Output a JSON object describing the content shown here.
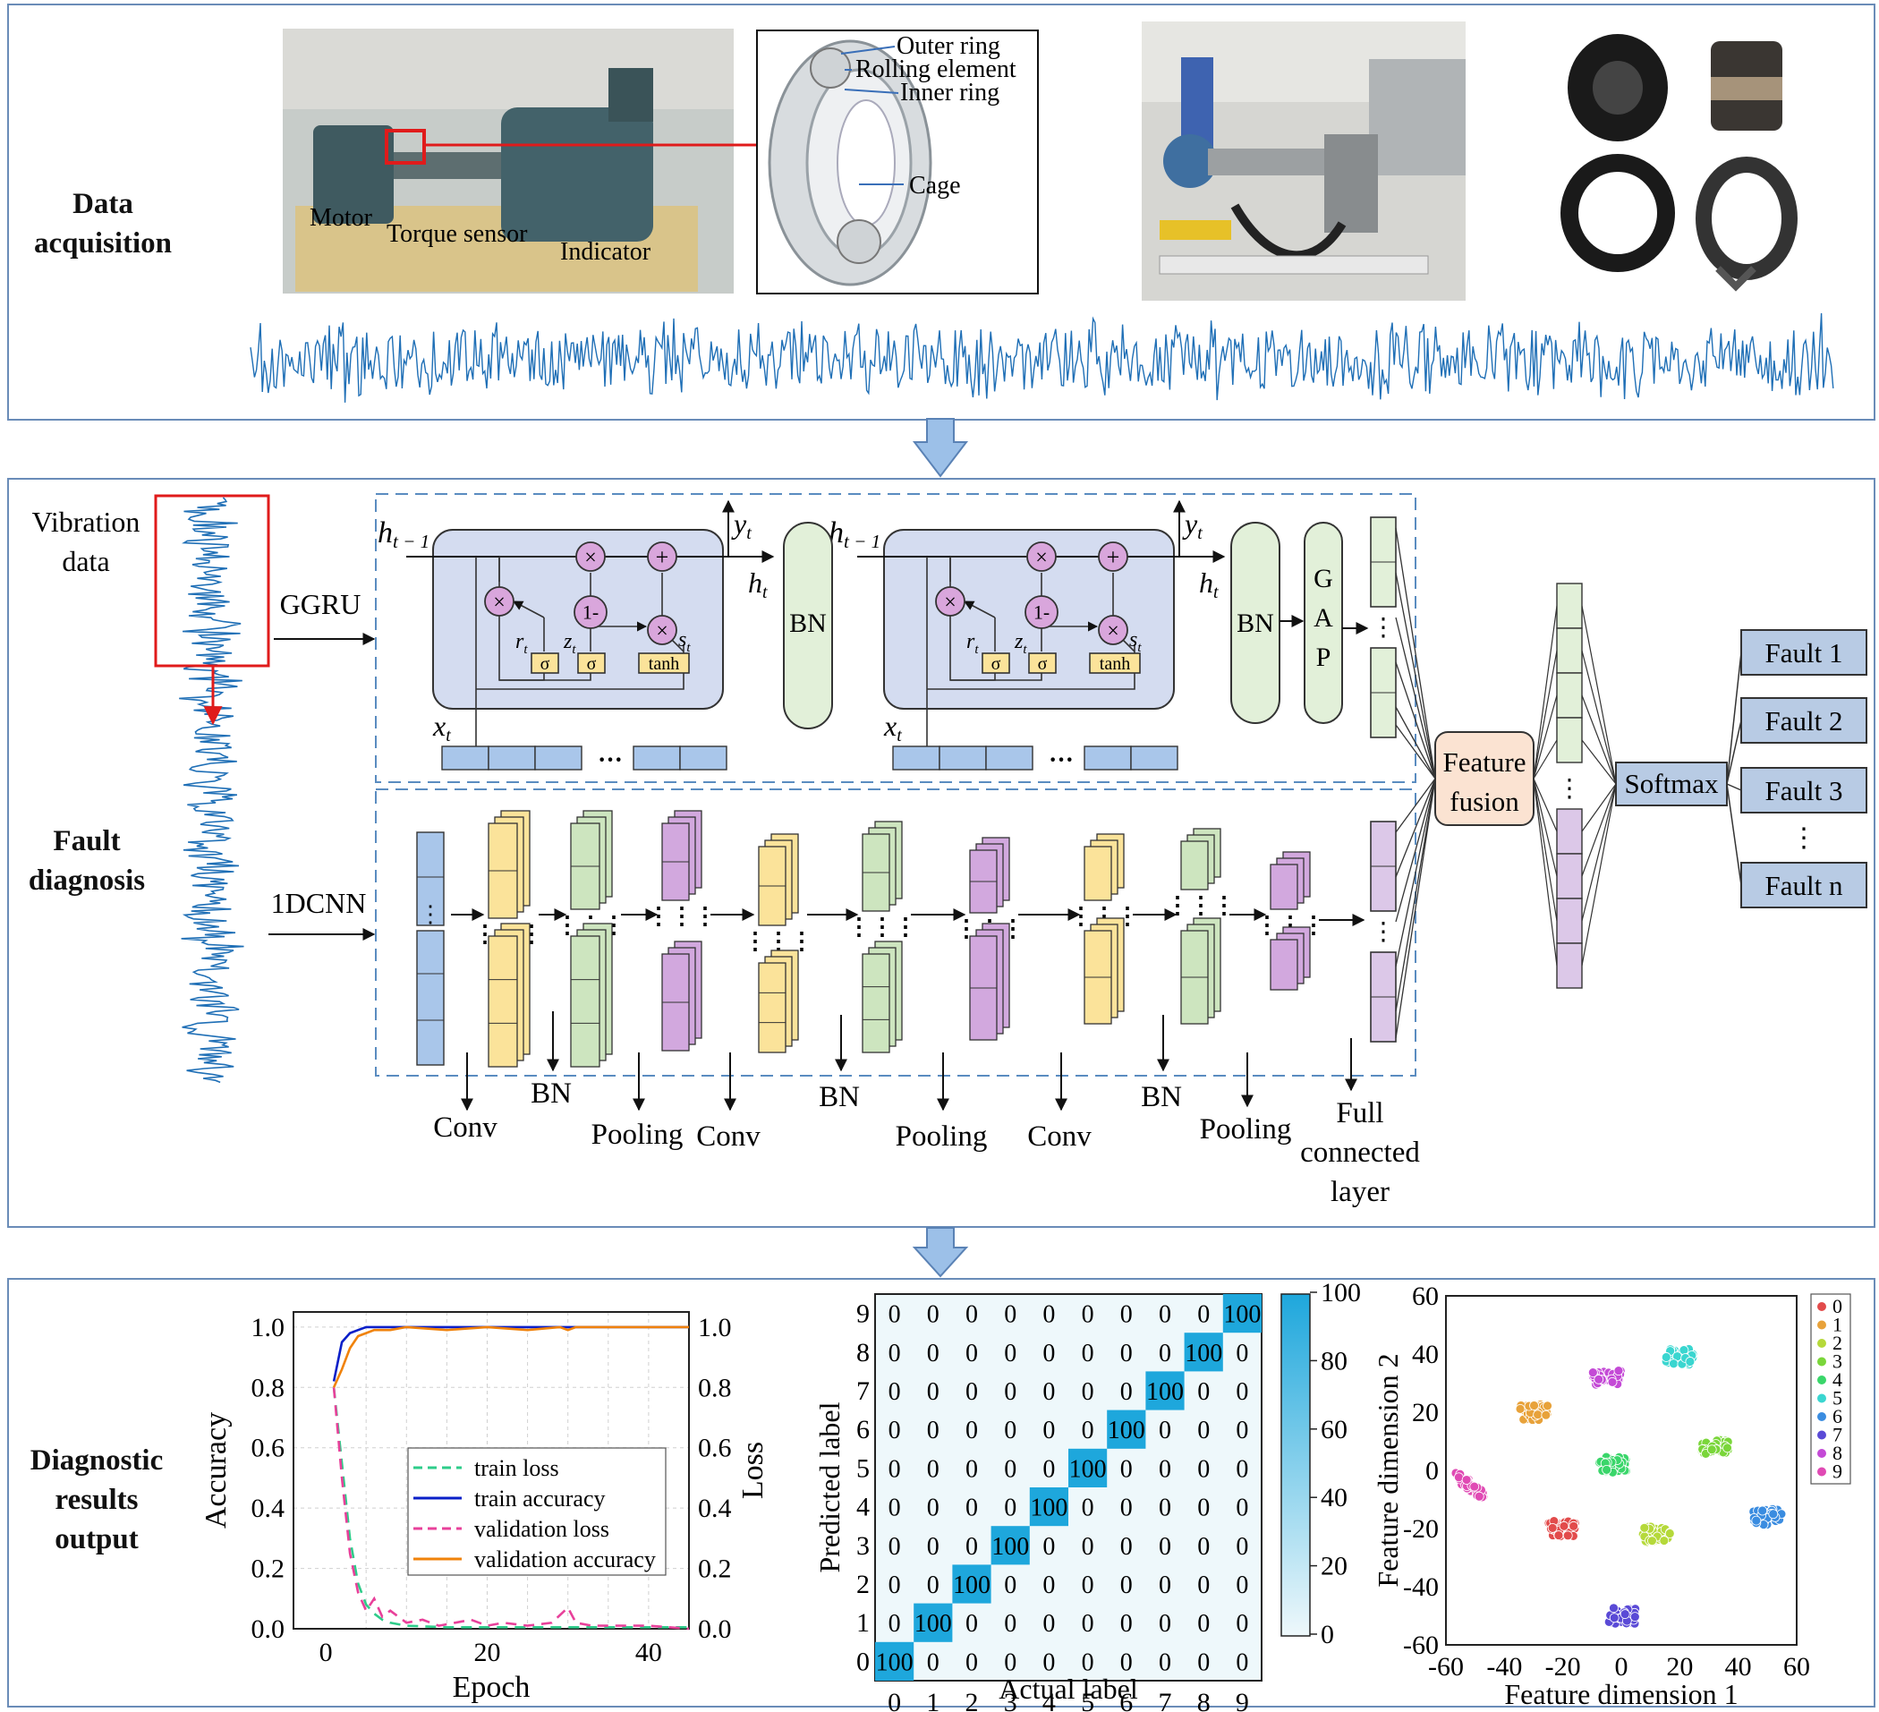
{
  "sections": {
    "acquisition": "Data acquisition",
    "diagnosis": "Fault diagnosis",
    "output": "Diagnostic results output"
  },
  "bearing_parts": [
    "Outer ring",
    "Rolling element",
    "Inner ring",
    "Cage"
  ],
  "testbench_labels": [
    "Motor",
    "Torque sensor",
    "Indicator"
  ],
  "diagnosis": {
    "input_label": "Vibration data",
    "branch_ggru": "GGRU",
    "branch_cnn": "1DCNN",
    "gru": {
      "h_prev": "h",
      "h_prev_sub": "t − 1",
      "h_t": "h",
      "h_t_sub": "t",
      "y_t": "y",
      "y_t_sub": "t",
      "x_t": "x",
      "x_t_sub": "t",
      "r_t": "r",
      "z_t": "z",
      "s_t": "s",
      "t_sub": "t",
      "times": "×",
      "plus": "+",
      "one_minus": "1-",
      "sigma": "σ",
      "tanh": "tanh",
      "ellipsis": "···"
    },
    "bn": "BN",
    "gap": [
      "G",
      "A",
      "P"
    ],
    "cnn_labels": [
      "Conv",
      "BN",
      "Pooling",
      "Conv",
      "BN",
      "Pooling",
      "Conv",
      "BN",
      "Pooling"
    ],
    "full_connected": [
      "Full",
      "connected",
      "layer"
    ],
    "feature_fusion": [
      "Feature",
      "fusion"
    ],
    "softmax": "Softmax",
    "faults": [
      "Fault 1",
      "Fault 2",
      "Fault 3",
      "Fault n"
    ]
  },
  "chart_data": [
    {
      "type": "line",
      "xlabel": "Epoch",
      "ylabel": "Accuracy",
      "ylabel_right": "Loss",
      "xlim": [
        -4,
        45
      ],
      "ylim": [
        0.0,
        1.05
      ],
      "xticks": [
        0,
        20,
        40
      ],
      "yticks": [
        "0.0",
        "0.2",
        "0.4",
        "0.6",
        "0.8",
        "1.0"
      ],
      "grid": true,
      "legend_position": "center-right",
      "series": [
        {
          "name": "train loss",
          "color": "#2ecc8a",
          "dash": true,
          "x": [
            1,
            2,
            3,
            4,
            5,
            6,
            7,
            8,
            10,
            15,
            20,
            30,
            45
          ],
          "y": [
            0.8,
            0.55,
            0.3,
            0.15,
            0.08,
            0.05,
            0.03,
            0.02,
            0.01,
            0.005,
            0.005,
            0.005,
            0.005
          ]
        },
        {
          "name": "train accuracy",
          "color": "#0a1fc8",
          "dash": false,
          "x": [
            1,
            2,
            3,
            4,
            5,
            6,
            10,
            20,
            30,
            45
          ],
          "y": [
            0.82,
            0.95,
            0.98,
            0.99,
            1.0,
            1.0,
            1.0,
            1.0,
            1.0,
            1.0
          ]
        },
        {
          "name": "validation loss",
          "color": "#e8409a",
          "dash": true,
          "x": [
            1,
            2,
            3,
            4,
            5,
            6,
            7,
            8,
            10,
            12,
            14,
            16,
            18,
            20,
            22,
            25,
            28,
            30,
            31,
            33,
            36,
            40,
            45
          ],
          "y": [
            0.8,
            0.5,
            0.25,
            0.12,
            0.06,
            0.1,
            0.04,
            0.06,
            0.02,
            0.03,
            0.01,
            0.02,
            0.03,
            0.01,
            0.02,
            0.01,
            0.02,
            0.07,
            0.02,
            0.01,
            0.01,
            0.01,
            0.0
          ]
        },
        {
          "name": "validation accuracy",
          "color": "#f0820a",
          "dash": false,
          "x": [
            1,
            2,
            3,
            4,
            5,
            6,
            8,
            10,
            15,
            20,
            25,
            29,
            30,
            31,
            35,
            40,
            45
          ],
          "y": [
            0.8,
            0.86,
            0.93,
            0.97,
            0.98,
            0.99,
            0.99,
            1.0,
            0.99,
            1.0,
            0.99,
            1.0,
            0.99,
            1.0,
            1.0,
            1.0,
            1.0
          ]
        }
      ]
    },
    {
      "type": "heatmap",
      "xlabel": "Actual label",
      "ylabel": "Predicted label",
      "labels": [
        "0",
        "1",
        "2",
        "3",
        "4",
        "5",
        "6",
        "7",
        "8",
        "9"
      ],
      "diagonal_value": 100,
      "off_diagonal_value": 0,
      "colorbar_ticks": [
        "0",
        "20",
        "40",
        "60",
        "80",
        "100"
      ],
      "colormap": [
        "#eef8fb",
        "#1ea7dc"
      ]
    },
    {
      "type": "scatter",
      "xlabel": "Feature dimension 1",
      "ylabel": "Feature dimension 2",
      "xlim": [
        -60,
        60
      ],
      "ylim": [
        -60,
        60
      ],
      "xticks": [
        "-60",
        "-40",
        "-20",
        "0",
        "20",
        "40",
        "60"
      ],
      "yticks": [
        "60",
        "40",
        "20",
        "0",
        "-20",
        "-40",
        "-60"
      ],
      "legend_position": "top-right",
      "clusters": [
        {
          "name": "0",
          "color": "#e24b4b",
          "center": [
            -20,
            -20
          ]
        },
        {
          "name": "1",
          "color": "#e8a23a",
          "center": [
            -30,
            20
          ]
        },
        {
          "name": "2",
          "color": "#b5d93a",
          "center": [
            12,
            -22
          ]
        },
        {
          "name": "3",
          "color": "#7ad63a",
          "center": [
            32,
            8
          ]
        },
        {
          "name": "4",
          "color": "#3ad66a",
          "center": [
            -3,
            2
          ]
        },
        {
          "name": "5",
          "color": "#3ad6d0",
          "center": [
            20,
            39
          ]
        },
        {
          "name": "6",
          "color": "#3a8ce0",
          "center": [
            50,
            -16
          ]
        },
        {
          "name": "7",
          "color": "#5a4ad6",
          "center": [
            0,
            -50
          ]
        },
        {
          "name": "8",
          "color": "#c44ad6",
          "center": [
            -5,
            32
          ]
        },
        {
          "name": "9",
          "color": "#e04ab4",
          "center": [
            -52,
            -5
          ]
        }
      ]
    }
  ]
}
